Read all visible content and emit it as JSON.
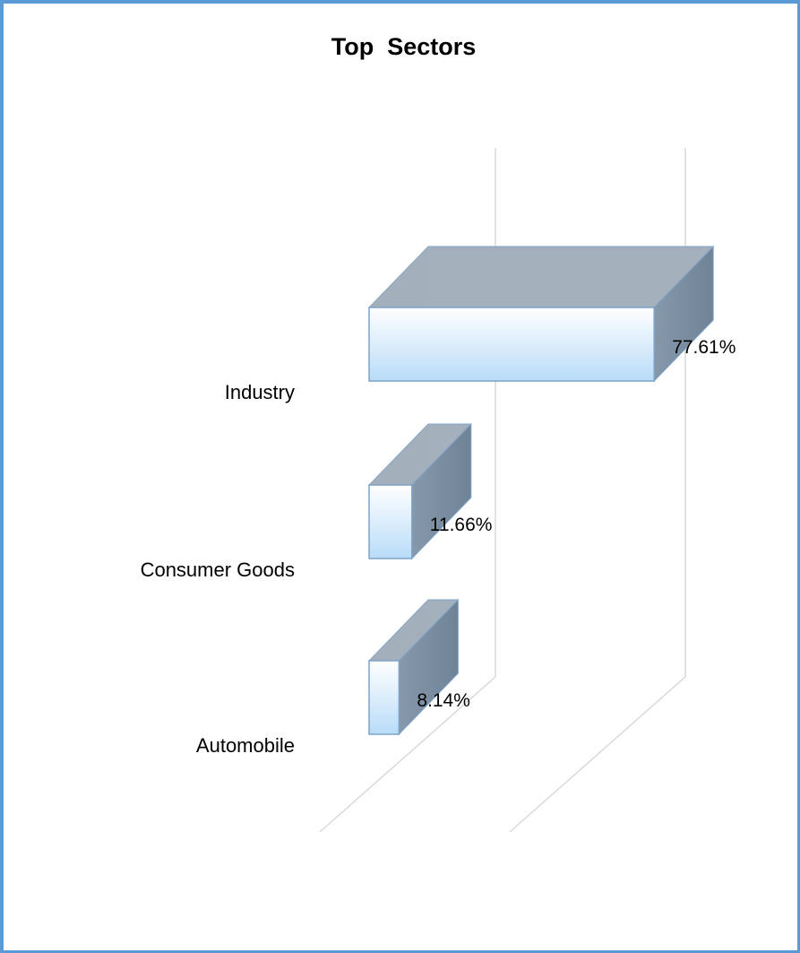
{
  "chart_data": {
    "type": "bar",
    "orientation": "horizontal",
    "style": "3d",
    "title": "Top  Sectors",
    "categories": [
      "Industry",
      "Consumer Goods",
      "Automobile"
    ],
    "values": [
      77.61,
      11.66,
      8.14
    ],
    "value_labels": [
      "77.61%",
      "11.66%",
      "8.14%"
    ],
    "value_unit": "%",
    "xlim": [
      0,
      100
    ],
    "grid": true,
    "legend": "none",
    "bar_color_front_top": "#ffffff",
    "bar_color_front_bottom": "#b8dcf8",
    "bar_color_top": "#a4b0bb",
    "bar_color_side": "#8699ab",
    "bar_edge_color": "#7fa3c7",
    "gridline_color": "#d9d9d9",
    "border_color": "#5b9bd5"
  }
}
